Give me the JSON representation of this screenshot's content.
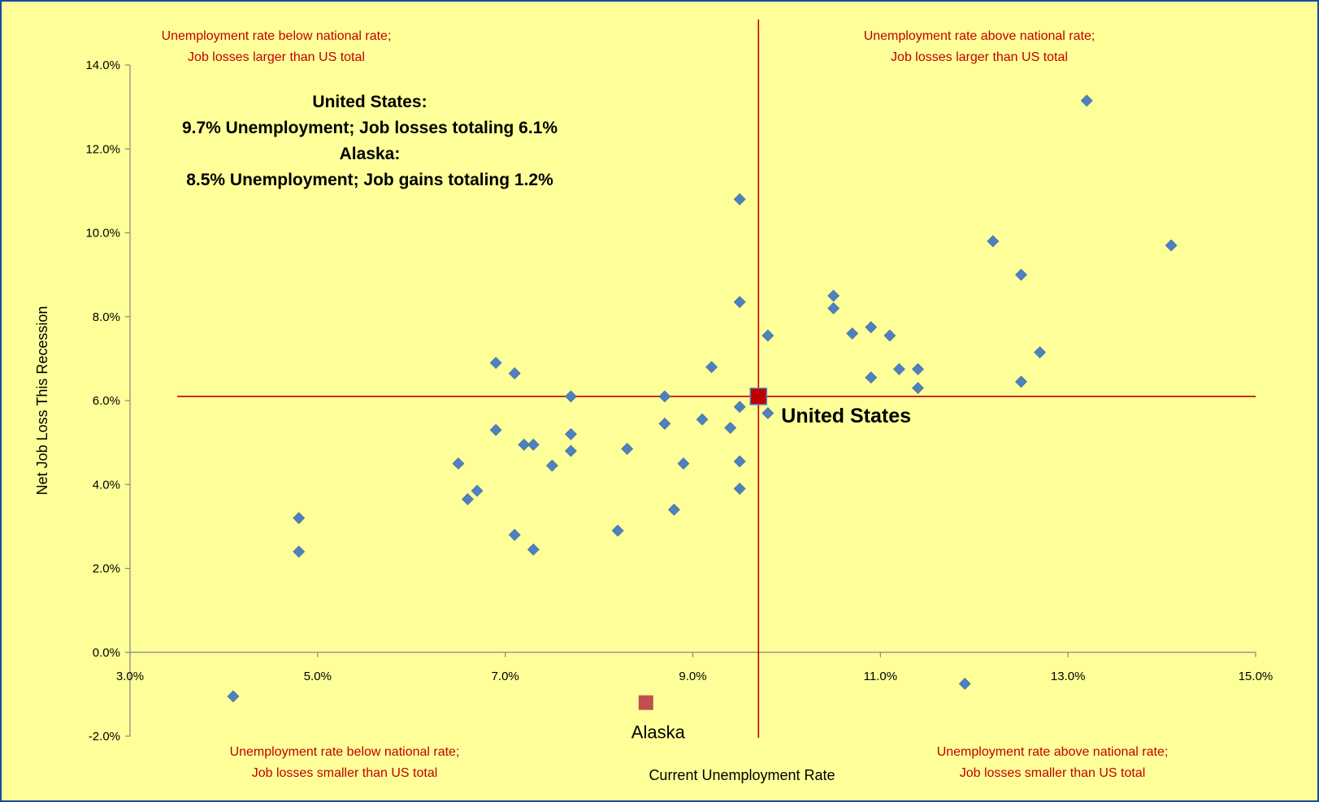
{
  "chart_data": {
    "type": "scatter",
    "xlabel": "Current Unemployment Rate",
    "ylabel": "Net Job Loss This Recession",
    "xlim": [
      3.0,
      15.0
    ],
    "ylim": [
      -2.0,
      14.0
    ],
    "x_ticks": [
      "3.0%",
      "5.0%",
      "7.0%",
      "9.0%",
      "11.0%",
      "13.0%",
      "15.0%"
    ],
    "y_ticks": [
      "-2.0%",
      "0.0%",
      "2.0%",
      "4.0%",
      "6.0%",
      "8.0%",
      "10.0%",
      "12.0%",
      "14.0%"
    ],
    "x_tick_values": [
      3,
      5,
      7,
      9,
      11,
      13,
      15
    ],
    "y_tick_values": [
      -2,
      0,
      2,
      4,
      6,
      8,
      10,
      12,
      14
    ],
    "grid": false,
    "reference_lines": {
      "x": 9.7,
      "y": 6.1,
      "color": "#c00000"
    },
    "series": [
      {
        "name": "",
        "marker": "diamond",
        "color": "#4f81bd",
        "points": [
          [
            4.1,
            -1.05
          ],
          [
            4.8,
            3.2
          ],
          [
            4.8,
            2.4
          ],
          [
            6.5,
            4.5
          ],
          [
            6.6,
            3.65
          ],
          [
            6.7,
            3.85
          ],
          [
            6.9,
            6.9
          ],
          [
            6.9,
            5.3
          ],
          [
            7.1,
            6.65
          ],
          [
            7.1,
            2.8
          ],
          [
            7.2,
            4.95
          ],
          [
            7.3,
            4.95
          ],
          [
            7.3,
            2.45
          ],
          [
            7.5,
            4.45
          ],
          [
            7.7,
            6.1
          ],
          [
            7.7,
            5.2
          ],
          [
            7.7,
            4.8
          ],
          [
            8.2,
            2.9
          ],
          [
            8.3,
            4.85
          ],
          [
            8.7,
            6.1
          ],
          [
            8.7,
            5.45
          ],
          [
            8.8,
            3.4
          ],
          [
            8.9,
            4.5
          ],
          [
            9.1,
            5.55
          ],
          [
            9.2,
            6.8
          ],
          [
            9.4,
            5.35
          ],
          [
            9.5,
            10.8
          ],
          [
            9.5,
            8.35
          ],
          [
            9.5,
            5.85
          ],
          [
            9.5,
            4.55
          ],
          [
            9.5,
            3.9
          ],
          [
            9.8,
            7.55
          ],
          [
            9.8,
            5.7
          ],
          [
            10.5,
            8.5
          ],
          [
            10.5,
            8.2
          ],
          [
            10.7,
            7.6
          ],
          [
            10.9,
            7.75
          ],
          [
            10.9,
            6.55
          ],
          [
            11.1,
            7.55
          ],
          [
            11.2,
            6.75
          ],
          [
            11.4,
            6.75
          ],
          [
            11.4,
            6.3
          ],
          [
            11.9,
            -0.75
          ],
          [
            12.2,
            9.8
          ],
          [
            12.5,
            9.0
          ],
          [
            12.5,
            6.45
          ],
          [
            12.7,
            7.15
          ],
          [
            13.2,
            13.15
          ],
          [
            14.1,
            9.7
          ]
        ]
      }
    ],
    "highlights": [
      {
        "label": "United States",
        "x": 9.7,
        "y": 6.1,
        "color": "#c00000",
        "marker": "square"
      },
      {
        "label": "Alaska",
        "x": 8.5,
        "y": -1.2,
        "color": "#c0504d",
        "marker": "square"
      }
    ],
    "quadrant_labels": {
      "top_left": [
        "Unemployment rate below national rate;",
        "Job losses larger than US total"
      ],
      "top_right": [
        "Unemployment rate above national rate;",
        "Job losses larger than US total"
      ],
      "bottom_left": [
        "Unemployment rate below national rate;",
        "Job losses smaller than US total"
      ],
      "bottom_right": [
        "Unemployment rate above national rate;",
        "Job losses smaller than US total"
      ]
    },
    "summary": [
      "United States:",
      "9.7% Unemployment; Job losses totaling 6.1%",
      "Alaska:",
      "8.5% Unemployment; Job gains totaling 1.2%"
    ]
  }
}
